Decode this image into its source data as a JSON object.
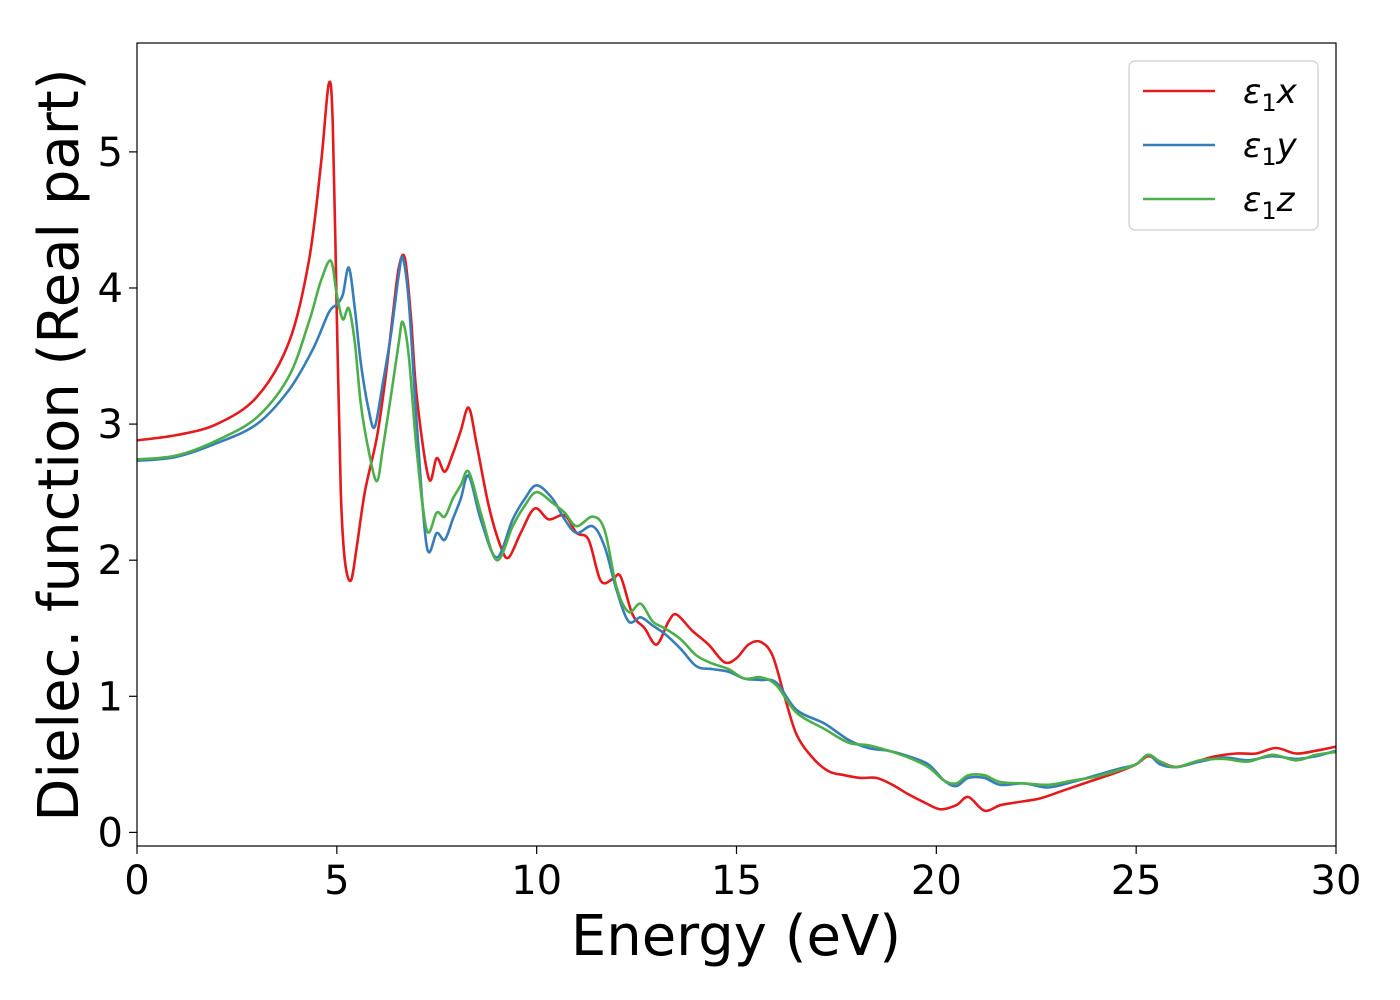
{
  "chart_data": {
    "type": "line",
    "title": "",
    "xlabel": "Energy (eV)",
    "ylabel": "Dielec. function (Real part)",
    "xlim": [
      0,
      30
    ],
    "ylim": [
      -0.1,
      5.8
    ],
    "xticks": [
      0,
      5,
      10,
      15,
      20,
      25,
      30
    ],
    "yticks": [
      0,
      1,
      2,
      3,
      4,
      5
    ],
    "grid": false,
    "legend_position": "top-right",
    "series": [
      {
        "name": "ε1x",
        "label_main": "ε",
        "label_sub": "1",
        "label_suffix": "x",
        "color": "#e41a1c",
        "points": [
          [
            0,
            2.88
          ],
          [
            1,
            2.92
          ],
          [
            2,
            3.0
          ],
          [
            3,
            3.2
          ],
          [
            3.8,
            3.6
          ],
          [
            4.3,
            4.2
          ],
          [
            4.6,
            4.9
          ],
          [
            4.8,
            5.5
          ],
          [
            4.9,
            5.2
          ],
          [
            5.0,
            3.8
          ],
          [
            5.1,
            2.5
          ],
          [
            5.2,
            2.0
          ],
          [
            5.35,
            1.85
          ],
          [
            5.5,
            2.1
          ],
          [
            5.7,
            2.5
          ],
          [
            6.0,
            2.9
          ],
          [
            6.2,
            3.3
          ],
          [
            6.4,
            3.8
          ],
          [
            6.55,
            4.15
          ],
          [
            6.7,
            4.22
          ],
          [
            6.85,
            3.8
          ],
          [
            7.0,
            3.2
          ],
          [
            7.3,
            2.6
          ],
          [
            7.5,
            2.75
          ],
          [
            7.7,
            2.65
          ],
          [
            7.9,
            2.78
          ],
          [
            8.1,
            2.95
          ],
          [
            8.3,
            3.12
          ],
          [
            8.5,
            2.85
          ],
          [
            8.8,
            2.4
          ],
          [
            9.1,
            2.1
          ],
          [
            9.3,
            2.02
          ],
          [
            9.6,
            2.2
          ],
          [
            9.95,
            2.38
          ],
          [
            10.3,
            2.3
          ],
          [
            10.7,
            2.33
          ],
          [
            11.0,
            2.2
          ],
          [
            11.3,
            2.15
          ],
          [
            11.6,
            1.85
          ],
          [
            11.9,
            1.86
          ],
          [
            12.1,
            1.88
          ],
          [
            12.4,
            1.6
          ],
          [
            12.7,
            1.5
          ],
          [
            13.0,
            1.38
          ],
          [
            13.3,
            1.55
          ],
          [
            13.5,
            1.6
          ],
          [
            13.9,
            1.48
          ],
          [
            14.3,
            1.38
          ],
          [
            14.7,
            1.25
          ],
          [
            15.0,
            1.28
          ],
          [
            15.3,
            1.38
          ],
          [
            15.6,
            1.4
          ],
          [
            15.9,
            1.3
          ],
          [
            16.2,
            1.0
          ],
          [
            16.5,
            0.72
          ],
          [
            16.9,
            0.55
          ],
          [
            17.3,
            0.45
          ],
          [
            17.7,
            0.42
          ],
          [
            18.1,
            0.4
          ],
          [
            18.5,
            0.4
          ],
          [
            18.9,
            0.35
          ],
          [
            19.3,
            0.28
          ],
          [
            19.7,
            0.22
          ],
          [
            20.1,
            0.17
          ],
          [
            20.5,
            0.2
          ],
          [
            20.8,
            0.26
          ],
          [
            21.2,
            0.16
          ],
          [
            21.6,
            0.2
          ],
          [
            22.0,
            0.22
          ],
          [
            22.6,
            0.25
          ],
          [
            23.2,
            0.31
          ],
          [
            23.8,
            0.37
          ],
          [
            24.5,
            0.44
          ],
          [
            25.0,
            0.5
          ],
          [
            25.3,
            0.56
          ],
          [
            25.6,
            0.52
          ],
          [
            26.0,
            0.48
          ],
          [
            26.5,
            0.52
          ],
          [
            27.0,
            0.56
          ],
          [
            27.5,
            0.58
          ],
          [
            28.0,
            0.58
          ],
          [
            28.5,
            0.62
          ],
          [
            29.0,
            0.58
          ],
          [
            29.5,
            0.6
          ],
          [
            30.0,
            0.63
          ]
        ]
      },
      {
        "name": "ε1y",
        "label_main": "ε",
        "label_sub": "1",
        "label_suffix": "y",
        "color": "#377eb8",
        "points": [
          [
            0,
            2.73
          ],
          [
            1,
            2.76
          ],
          [
            2,
            2.86
          ],
          [
            3,
            3.0
          ],
          [
            3.8,
            3.25
          ],
          [
            4.4,
            3.55
          ],
          [
            4.8,
            3.82
          ],
          [
            5.0,
            3.88
          ],
          [
            5.15,
            3.95
          ],
          [
            5.3,
            4.15
          ],
          [
            5.45,
            3.85
          ],
          [
            5.6,
            3.45
          ],
          [
            5.8,
            3.1
          ],
          [
            5.95,
            2.98
          ],
          [
            6.15,
            3.3
          ],
          [
            6.35,
            3.65
          ],
          [
            6.55,
            4.1
          ],
          [
            6.65,
            4.22
          ],
          [
            6.8,
            3.9
          ],
          [
            7.0,
            3.0
          ],
          [
            7.25,
            2.1
          ],
          [
            7.5,
            2.2
          ],
          [
            7.7,
            2.15
          ],
          [
            7.9,
            2.3
          ],
          [
            8.1,
            2.45
          ],
          [
            8.3,
            2.62
          ],
          [
            8.6,
            2.3
          ],
          [
            9.0,
            2.02
          ],
          [
            9.4,
            2.3
          ],
          [
            9.7,
            2.45
          ],
          [
            10.0,
            2.55
          ],
          [
            10.4,
            2.45
          ],
          [
            10.7,
            2.3
          ],
          [
            11.0,
            2.2
          ],
          [
            11.4,
            2.25
          ],
          [
            11.7,
            2.1
          ],
          [
            12.0,
            1.78
          ],
          [
            12.3,
            1.55
          ],
          [
            12.6,
            1.58
          ],
          [
            12.9,
            1.52
          ],
          [
            13.2,
            1.46
          ],
          [
            13.6,
            1.35
          ],
          [
            14.0,
            1.22
          ],
          [
            14.4,
            1.2
          ],
          [
            14.8,
            1.18
          ],
          [
            15.2,
            1.13
          ],
          [
            15.6,
            1.12
          ],
          [
            16.0,
            1.1
          ],
          [
            16.5,
            0.9
          ],
          [
            17.2,
            0.8
          ],
          [
            17.8,
            0.68
          ],
          [
            18.3,
            0.62
          ],
          [
            18.8,
            0.6
          ],
          [
            19.3,
            0.56
          ],
          [
            19.8,
            0.5
          ],
          [
            20.2,
            0.38
          ],
          [
            20.5,
            0.34
          ],
          [
            20.8,
            0.4
          ],
          [
            21.2,
            0.4
          ],
          [
            21.6,
            0.35
          ],
          [
            22.2,
            0.36
          ],
          [
            22.8,
            0.33
          ],
          [
            23.4,
            0.37
          ],
          [
            24.0,
            0.42
          ],
          [
            24.6,
            0.47
          ],
          [
            25.0,
            0.5
          ],
          [
            25.3,
            0.57
          ],
          [
            25.6,
            0.5
          ],
          [
            26.0,
            0.48
          ],
          [
            26.6,
            0.52
          ],
          [
            27.2,
            0.55
          ],
          [
            27.8,
            0.53
          ],
          [
            28.4,
            0.56
          ],
          [
            29.0,
            0.54
          ],
          [
            29.5,
            0.56
          ],
          [
            30.0,
            0.6
          ]
        ]
      },
      {
        "name": "ε1z",
        "label_main": "ε",
        "label_sub": "1",
        "label_suffix": "z",
        "color": "#4daf4a",
        "points": [
          [
            0,
            2.74
          ],
          [
            1,
            2.77
          ],
          [
            2,
            2.88
          ],
          [
            3,
            3.05
          ],
          [
            3.8,
            3.35
          ],
          [
            4.3,
            3.75
          ],
          [
            4.6,
            4.05
          ],
          [
            4.85,
            4.2
          ],
          [
            5.0,
            3.95
          ],
          [
            5.15,
            3.77
          ],
          [
            5.3,
            3.85
          ],
          [
            5.45,
            3.6
          ],
          [
            5.6,
            3.15
          ],
          [
            5.8,
            2.8
          ],
          [
            6.0,
            2.58
          ],
          [
            6.15,
            2.82
          ],
          [
            6.35,
            3.2
          ],
          [
            6.55,
            3.6
          ],
          [
            6.65,
            3.75
          ],
          [
            6.8,
            3.5
          ],
          [
            7.0,
            2.8
          ],
          [
            7.25,
            2.22
          ],
          [
            7.5,
            2.35
          ],
          [
            7.7,
            2.32
          ],
          [
            7.9,
            2.45
          ],
          [
            8.1,
            2.55
          ],
          [
            8.3,
            2.65
          ],
          [
            8.6,
            2.35
          ],
          [
            9.0,
            2.0
          ],
          [
            9.4,
            2.25
          ],
          [
            9.7,
            2.4
          ],
          [
            10.0,
            2.5
          ],
          [
            10.4,
            2.42
          ],
          [
            10.7,
            2.35
          ],
          [
            11.0,
            2.25
          ],
          [
            11.4,
            2.32
          ],
          [
            11.7,
            2.22
          ],
          [
            12.0,
            1.8
          ],
          [
            12.3,
            1.62
          ],
          [
            12.6,
            1.68
          ],
          [
            12.9,
            1.55
          ],
          [
            13.2,
            1.5
          ],
          [
            13.6,
            1.42
          ],
          [
            14.0,
            1.3
          ],
          [
            14.4,
            1.24
          ],
          [
            14.8,
            1.2
          ],
          [
            15.2,
            1.13
          ],
          [
            15.6,
            1.14
          ],
          [
            16.0,
            1.08
          ],
          [
            16.5,
            0.88
          ],
          [
            17.2,
            0.76
          ],
          [
            17.8,
            0.66
          ],
          [
            18.3,
            0.64
          ],
          [
            18.8,
            0.6
          ],
          [
            19.3,
            0.55
          ],
          [
            19.8,
            0.48
          ],
          [
            20.2,
            0.38
          ],
          [
            20.5,
            0.36
          ],
          [
            20.8,
            0.42
          ],
          [
            21.2,
            0.42
          ],
          [
            21.6,
            0.37
          ],
          [
            22.2,
            0.36
          ],
          [
            22.8,
            0.35
          ],
          [
            23.4,
            0.38
          ],
          [
            24.0,
            0.41
          ],
          [
            24.6,
            0.46
          ],
          [
            25.0,
            0.5
          ],
          [
            25.3,
            0.57
          ],
          [
            25.6,
            0.52
          ],
          [
            26.0,
            0.48
          ],
          [
            26.6,
            0.53
          ],
          [
            27.2,
            0.54
          ],
          [
            27.8,
            0.52
          ],
          [
            28.4,
            0.57
          ],
          [
            29.0,
            0.53
          ],
          [
            29.5,
            0.57
          ],
          [
            30.0,
            0.59
          ]
        ]
      }
    ]
  }
}
